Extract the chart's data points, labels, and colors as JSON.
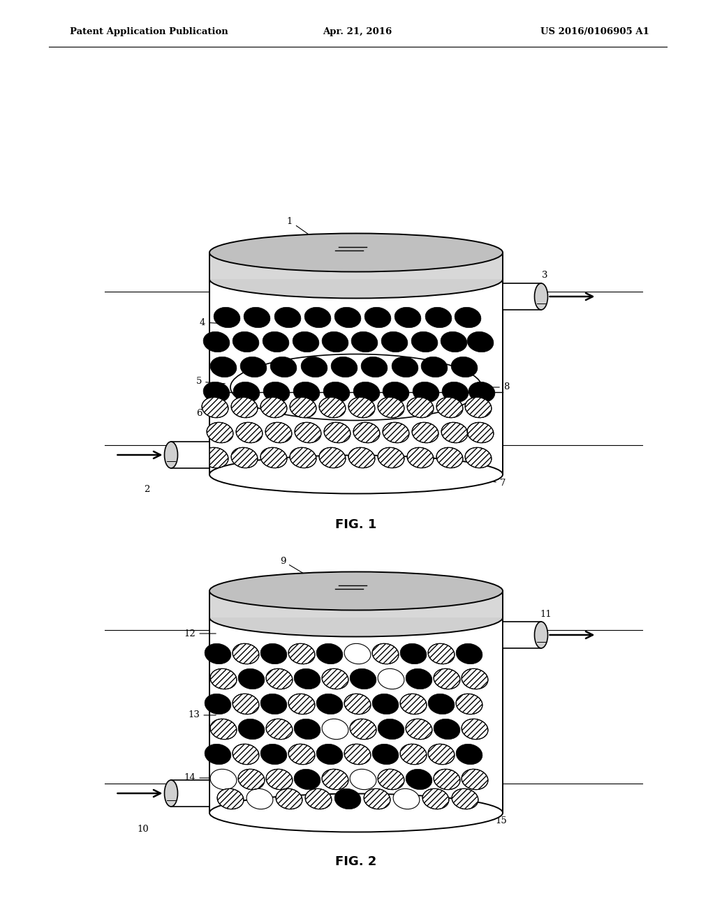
{
  "bg_color": "#ffffff",
  "header_left": "Patent Application Publication",
  "header_center": "Apr. 21, 2016",
  "header_right": "US 2016/0106905 A1",
  "fig1_label": "FIG. 1",
  "fig2_label": "FIG. 2"
}
